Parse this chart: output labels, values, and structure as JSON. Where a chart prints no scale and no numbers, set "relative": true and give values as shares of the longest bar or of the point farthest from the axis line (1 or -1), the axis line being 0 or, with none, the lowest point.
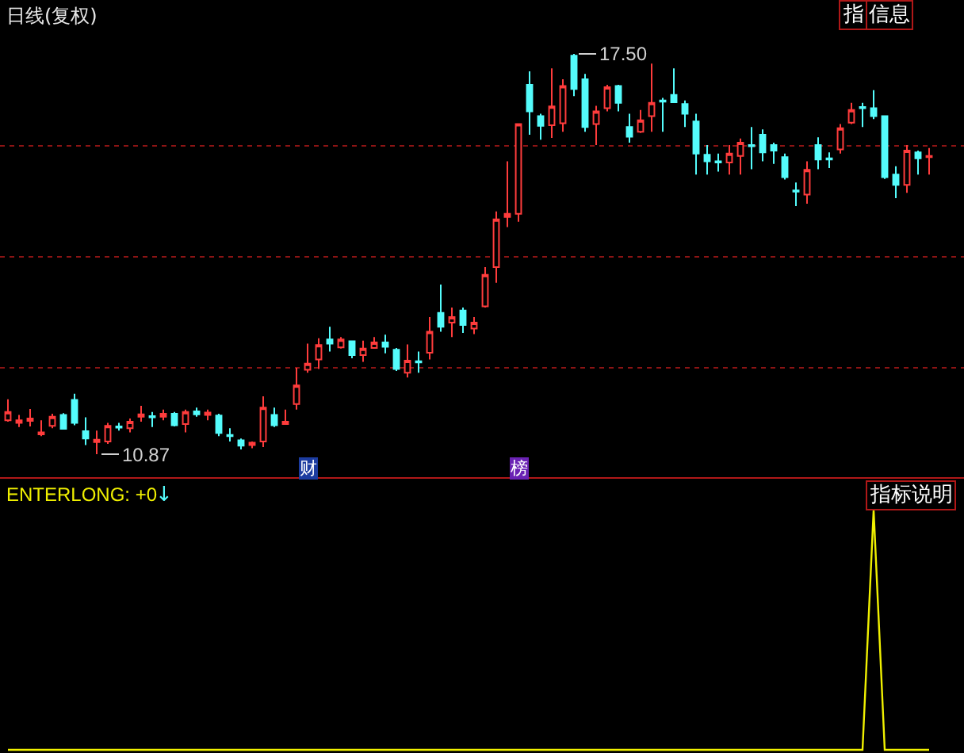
{
  "chart_data": [
    {
      "type": "candlestick",
      "title": "日线(复权)",
      "categories": [
        null,
        null,
        null,
        null,
        null,
        null,
        null,
        null,
        null,
        null,
        null,
        null,
        null,
        null,
        null,
        null,
        null,
        null,
        null,
        null,
        null,
        null,
        null,
        null,
        null,
        null,
        null,
        null,
        null,
        null,
        null,
        null,
        null,
        null,
        null,
        null,
        null,
        null,
        null,
        null,
        null,
        null,
        null,
        null,
        null,
        null,
        null,
        null,
        null,
        null,
        null,
        null,
        null,
        null,
        null,
        null,
        null,
        null,
        null,
        null,
        null,
        null,
        null,
        null,
        null,
        null,
        null,
        null,
        null,
        null,
        null,
        null,
        null,
        null,
        null,
        null,
        null,
        null,
        null,
        null,
        null,
        null,
        null,
        null
      ],
      "ohlc": [
        [
          11.43,
          11.78,
          11.41,
          11.57
        ],
        [
          11.39,
          11.52,
          11.32,
          11.43
        ],
        [
          11.42,
          11.62,
          11.33,
          11.46
        ],
        [
          11.2,
          11.43,
          11.17,
          11.23
        ],
        [
          11.34,
          11.54,
          11.3,
          11.49
        ],
        [
          11.52,
          11.55,
          11.28,
          11.29
        ],
        [
          11.77,
          11.87,
          11.35,
          11.39
        ],
        [
          11.25,
          11.48,
          11.02,
          11.13
        ],
        [
          11.07,
          11.26,
          10.87,
          11.11
        ],
        [
          11.08,
          11.39,
          11.04,
          11.34
        ],
        [
          11.33,
          11.39,
          11.26,
          11.31
        ],
        [
          11.3,
          11.46,
          11.23,
          11.41
        ],
        [
          11.49,
          11.67,
          11.41,
          11.53
        ],
        [
          11.5,
          11.57,
          11.32,
          11.48
        ],
        [
          11.49,
          11.61,
          11.43,
          11.54
        ],
        [
          11.54,
          11.57,
          11.33,
          11.35
        ],
        [
          11.37,
          11.61,
          11.23,
          11.57
        ],
        [
          11.58,
          11.64,
          11.49,
          11.53
        ],
        [
          11.52,
          11.61,
          11.43,
          11.56
        ],
        [
          11.51,
          11.54,
          11.17,
          11.22
        ],
        [
          11.19,
          11.3,
          11.08,
          11.17
        ],
        [
          11.1,
          11.13,
          10.95,
          11.01
        ],
        [
          11.02,
          11.08,
          10.97,
          11.06
        ],
        [
          11.08,
          11.83,
          10.99,
          11.64
        ],
        [
          11.52,
          11.64,
          11.32,
          11.35
        ],
        [
          11.37,
          11.61,
          11.36,
          11.41
        ],
        [
          11.7,
          12.3,
          11.61,
          12.01
        ],
        [
          12.27,
          12.7,
          12.22,
          12.37
        ],
        [
          12.44,
          12.79,
          12.28,
          12.68
        ],
        [
          12.77,
          12.98,
          12.57,
          12.7
        ],
        [
          12.64,
          12.81,
          12.62,
          12.77
        ],
        [
          12.74,
          12.75,
          12.46,
          12.51
        ],
        [
          12.51,
          12.75,
          12.4,
          12.62
        ],
        [
          12.63,
          12.81,
          12.62,
          12.72
        ],
        [
          12.72,
          12.85,
          12.54,
          12.65
        ],
        [
          12.6,
          12.63,
          12.25,
          12.28
        ],
        [
          12.22,
          12.69,
          12.14,
          12.42
        ],
        [
          12.41,
          12.57,
          12.22,
          12.39
        ],
        [
          12.55,
          13.14,
          12.44,
          12.9
        ],
        [
          13.21,
          13.68,
          12.9,
          12.98
        ],
        [
          13.05,
          13.3,
          12.81,
          13.14
        ],
        [
          13.25,
          13.3,
          12.88,
          13.01
        ],
        [
          12.95,
          13.14,
          12.86,
          13.05
        ],
        [
          13.32,
          13.97,
          13.3,
          13.84
        ],
        [
          13.97,
          14.89,
          13.71,
          14.76
        ],
        [
          14.8,
          15.72,
          14.63,
          14.85
        ],
        [
          14.85,
          16.34,
          14.72,
          16.34
        ],
        [
          16.99,
          17.21,
          16.16,
          16.55
        ],
        [
          16.47,
          16.51,
          16.08,
          16.31
        ],
        [
          16.32,
          17.26,
          16.11,
          16.63
        ],
        [
          16.35,
          17.08,
          16.21,
          16.97
        ],
        [
          17.47,
          17.5,
          16.8,
          16.92
        ],
        [
          17.08,
          17.17,
          16.21,
          16.29
        ],
        [
          16.34,
          16.64,
          15.99,
          16.55
        ],
        [
          16.6,
          16.99,
          16.55,
          16.95
        ],
        [
          16.97,
          16.99,
          16.55,
          16.69
        ],
        [
          16.29,
          16.51,
          16.03,
          16.13
        ],
        [
          16.21,
          16.57,
          16.19,
          16.4
        ],
        [
          16.47,
          17.34,
          16.21,
          16.69
        ],
        [
          16.73,
          16.77,
          16.21,
          16.71
        ],
        [
          16.82,
          17.26,
          16.69,
          16.7
        ],
        [
          16.67,
          16.73,
          16.29,
          16.51
        ],
        [
          16.38,
          16.51,
          15.5,
          15.85
        ],
        [
          15.83,
          15.99,
          15.5,
          15.72
        ],
        [
          15.72,
          15.85,
          15.55,
          15.7
        ],
        [
          15.7,
          15.99,
          15.5,
          15.85
        ],
        [
          15.81,
          16.1,
          15.5,
          16.03
        ],
        [
          15.99,
          16.29,
          15.59,
          15.97
        ],
        [
          16.16,
          16.25,
          15.72,
          15.87
        ],
        [
          15.99,
          16.03,
          15.68,
          15.9
        ],
        [
          15.79,
          15.85,
          15.42,
          15.46
        ],
        [
          15.24,
          15.37,
          14.98,
          15.22
        ],
        [
          15.17,
          15.72,
          15.02,
          15.58
        ],
        [
          15.99,
          16.12,
          15.59,
          15.75
        ],
        [
          15.77,
          15.87,
          15.61,
          15.75
        ],
        [
          15.92,
          16.34,
          15.85,
          16.27
        ],
        [
          16.36,
          16.69,
          16.34,
          16.57
        ],
        [
          16.62,
          16.69,
          16.29,
          16.6
        ],
        [
          16.6,
          16.9,
          16.42,
          16.47
        ],
        [
          16.47,
          16.48,
          15.43,
          15.46
        ],
        [
          15.5,
          15.64,
          15.11,
          15.33
        ],
        [
          15.33,
          15.99,
          15.2,
          15.9
        ],
        [
          15.87,
          15.9,
          15.5,
          15.77
        ],
        [
          15.79,
          15.94,
          15.5,
          15.81
        ]
      ],
      "colors": [
        "#ff3c3c",
        "#ff3c3c",
        "#ff3c3c",
        "#ff3c3c",
        "#ff3c3c",
        "#54fcfc",
        "#54fcfc",
        "#54fcfc",
        "#ff3c3c",
        "#ff3c3c",
        "#54fcfc",
        "#ff3c3c",
        "#ff3c3c",
        "#54fcfc",
        "#ff3c3c",
        "#54fcfc",
        "#ff3c3c",
        "#54fcfc",
        "#ff3c3c",
        "#54fcfc",
        "#54fcfc",
        "#54fcfc",
        "#ff3c3c",
        "#ff3c3c",
        "#54fcfc",
        "#ff3c3c",
        "#ff3c3c",
        "#ff3c3c",
        "#ff3c3c",
        "#54fcfc",
        "#ff3c3c",
        "#54fcfc",
        "#ff3c3c",
        "#ff3c3c",
        "#54fcfc",
        "#54fcfc",
        "#ff3c3c",
        "#54fcfc",
        "#ff3c3c",
        "#54fcfc",
        "#ff3c3c",
        "#54fcfc",
        "#ff3c3c",
        "#ff3c3c",
        "#ff3c3c",
        "#ff3c3c",
        "#ff3c3c",
        "#54fcfc",
        "#54fcfc",
        "#ff3c3c",
        "#ff3c3c",
        "#54fcfc",
        "#54fcfc",
        "#ff3c3c",
        "#ff3c3c",
        "#54fcfc",
        "#54fcfc",
        "#ff3c3c",
        "#ff3c3c",
        "#54fcfc",
        "#54fcfc",
        "#54fcfc",
        "#54fcfc",
        "#54fcfc",
        "#54fcfc",
        "#ff3c3c",
        "#ff3c3c",
        "#54fcfc",
        "#54fcfc",
        "#54fcfc",
        "#54fcfc",
        "#54fcfc",
        "#ff3c3c",
        "#54fcfc",
        "#54fcfc",
        "#ff3c3c",
        "#ff3c3c",
        "#54fcfc",
        "#54fcfc",
        "#54fcfc",
        "#54fcfc",
        "#ff3c3c",
        "#54fcfc",
        "#ff3c3c"
      ],
      "yticks": [
        {
          "value": 15.98,
          "label": null
        },
        {
          "value": 14.14,
          "label": null
        },
        {
          "value": 12.3,
          "label": null
        }
      ],
      "grid": "y",
      "tick_labels": false,
      "annotations": [
        "17.50",
        "10.87",
        "财",
        "榜",
        "指",
        "信息"
      ]
    },
    {
      "type": "line",
      "title": "ENTERLONG: +0",
      "relative": true,
      "categories": [
        null,
        null,
        null,
        null,
        null,
        null,
        null,
        null,
        null,
        null,
        null,
        null,
        null,
        null,
        null,
        null,
        null,
        null,
        null,
        null,
        null,
        null,
        null,
        null,
        null,
        null,
        null,
        null,
        null,
        null,
        null,
        null,
        null,
        null,
        null,
        null,
        null,
        null,
        null,
        null,
        null,
        null,
        null,
        null,
        null,
        null,
        null,
        null,
        null,
        null,
        null,
        null,
        null,
        null,
        null,
        null,
        null,
        null,
        null,
        null,
        null,
        null,
        null,
        null,
        null,
        null,
        null,
        null,
        null,
        null,
        null,
        null,
        null,
        null,
        null,
        null,
        null,
        null,
        null,
        null,
        null,
        null,
        null,
        null
      ],
      "series": [
        {
          "color": "#f0f000",
          "values": [
            0,
            0,
            0,
            0,
            0,
            0,
            0,
            0,
            0,
            0,
            0,
            0,
            0,
            0,
            0,
            0,
            0,
            0,
            0,
            0,
            0,
            0,
            0,
            0,
            0,
            0,
            0,
            0,
            0,
            0,
            0,
            0,
            0,
            0,
            0,
            0,
            0,
            0,
            0,
            0,
            0,
            0,
            0,
            0,
            0,
            0,
            0,
            0,
            0,
            0,
            0,
            0,
            0,
            0,
            0,
            0,
            0,
            0,
            0,
            0,
            0,
            0,
            0,
            0,
            0,
            0,
            0,
            0,
            0,
            0,
            0,
            0,
            0,
            0,
            0,
            0,
            0,
            0,
            1,
            0,
            0,
            0,
            0,
            0
          ]
        }
      ],
      "tick_labels": false,
      "annotations": [
        "↓",
        "指标说明"
      ]
    }
  ]
}
